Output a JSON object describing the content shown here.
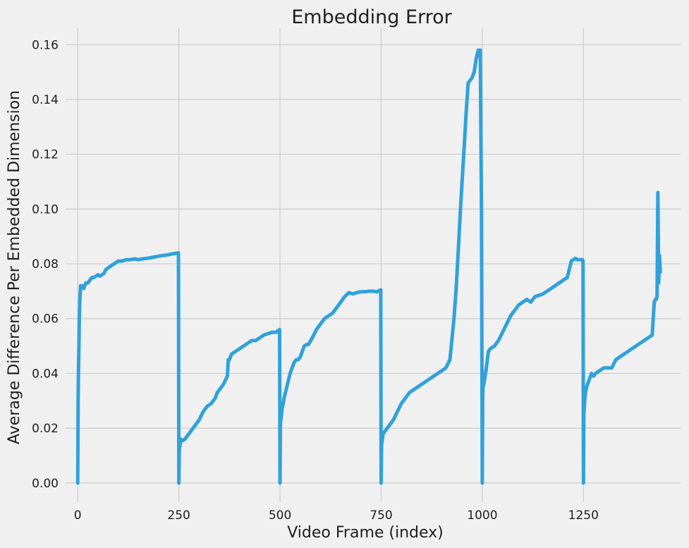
{
  "chart_data": {
    "type": "line",
    "title": "Embedding Error",
    "xlabel": "Video Frame (index)",
    "ylabel": "Average Difference Per Embedded Dimension",
    "xlim": [
      -30,
      1490
    ],
    "ylim": [
      -0.007,
      0.166
    ],
    "xticks": [
      0,
      250,
      500,
      750,
      1000,
      1250
    ],
    "yticks": [
      0.0,
      0.02,
      0.04,
      0.06,
      0.08,
      0.1,
      0.12,
      0.14,
      0.16
    ],
    "ytick_labels": [
      "0.00",
      "0.02",
      "0.04",
      "0.06",
      "0.08",
      "0.10",
      "0.12",
      "0.14",
      "0.16"
    ],
    "xtick_labels": [
      "0",
      "250",
      "500",
      "750",
      "1000",
      "1250"
    ],
    "grid": true,
    "color": "#30a2da",
    "series": [
      {
        "x": [
          0,
          1,
          2,
          3,
          4,
          5,
          7,
          10,
          12,
          15,
          20,
          25,
          30,
          35,
          40,
          45,
          50,
          55,
          60,
          65,
          70,
          80,
          90,
          100,
          110,
          120,
          130,
          140,
          150,
          160,
          170,
          180,
          190,
          200,
          210,
          220,
          230,
          240,
          249,
          250,
          251,
          253,
          255,
          258,
          260,
          265,
          270,
          280,
          290,
          300,
          310,
          320,
          330,
          340,
          345,
          350,
          360,
          370,
          372,
          375,
          380,
          390,
          400,
          410,
          420,
          430,
          440,
          450,
          460,
          470,
          480,
          490,
          499,
          500,
          501,
          503,
          505,
          508,
          510,
          515,
          520,
          525,
          530,
          535,
          540,
          545,
          550,
          555,
          560,
          565,
          570,
          580,
          590,
          600,
          610,
          620,
          630,
          640,
          650,
          660,
          670,
          680,
          690,
          700,
          710,
          720,
          730,
          740,
          749,
          750,
          751,
          753,
          755,
          760,
          765,
          770,
          780,
          790,
          800,
          810,
          820,
          830,
          840,
          850,
          860,
          870,
          880,
          890,
          900,
          910,
          920,
          930,
          935,
          940,
          945,
          950,
          955,
          960,
          965,
          970,
          975,
          980,
          985,
          990,
          995,
          998,
          1000,
          1001,
          1002,
          1005,
          1010,
          1015,
          1020,
          1030,
          1040,
          1050,
          1060,
          1070,
          1080,
          1090,
          1100,
          1110,
          1120,
          1130,
          1140,
          1150,
          1160,
          1170,
          1180,
          1190,
          1200,
          1210,
          1220,
          1230,
          1235,
          1240,
          1248,
          1249,
          1250,
          1251,
          1253,
          1255,
          1258,
          1260,
          1265,
          1270,
          1275,
          1280,
          1290,
          1300,
          1310,
          1320,
          1330,
          1340,
          1350,
          1360,
          1370,
          1380,
          1390,
          1400,
          1410,
          1420,
          1425,
          1428,
          1430,
          1432,
          1434,
          1436,
          1438,
          1440
        ],
        "y": [
          0.0,
          0.03,
          0.042,
          0.05,
          0.06,
          0.066,
          0.072,
          0.071,
          0.072,
          0.071,
          0.073,
          0.073,
          0.074,
          0.075,
          0.075,
          0.0755,
          0.076,
          0.0755,
          0.076,
          0.0765,
          0.078,
          0.079,
          0.08,
          0.081,
          0.081,
          0.0815,
          0.0815,
          0.0818,
          0.0815,
          0.0818,
          0.082,
          0.0822,
          0.0825,
          0.0828,
          0.083,
          0.0832,
          0.0835,
          0.0838,
          0.084,
          0.0,
          0.012,
          0.014,
          0.016,
          0.0155,
          0.0155,
          0.016,
          0.017,
          0.019,
          0.021,
          0.023,
          0.026,
          0.028,
          0.029,
          0.031,
          0.033,
          0.034,
          0.036,
          0.039,
          0.045,
          0.045,
          0.047,
          0.048,
          0.049,
          0.05,
          0.051,
          0.052,
          0.052,
          0.053,
          0.054,
          0.0545,
          0.055,
          0.055,
          0.056,
          0.0,
          0.022,
          0.024,
          0.027,
          0.029,
          0.031,
          0.034,
          0.037,
          0.04,
          0.042,
          0.044,
          0.045,
          0.045,
          0.046,
          0.048,
          0.05,
          0.0505,
          0.0505,
          0.053,
          0.056,
          0.058,
          0.06,
          0.061,
          0.062,
          0.064,
          0.066,
          0.068,
          0.0695,
          0.069,
          0.0695,
          0.0698,
          0.0698,
          0.07,
          0.07,
          0.0698,
          0.0705,
          0.0,
          0.014,
          0.016,
          0.018,
          0.019,
          0.02,
          0.021,
          0.023,
          0.026,
          0.029,
          0.031,
          0.033,
          0.034,
          0.035,
          0.036,
          0.037,
          0.038,
          0.039,
          0.04,
          0.041,
          0.042,
          0.045,
          0.06,
          0.07,
          0.083,
          0.097,
          0.11,
          0.122,
          0.135,
          0.146,
          0.147,
          0.148,
          0.15,
          0.155,
          0.158,
          0.158,
          0.1,
          0.0,
          0.032,
          0.035,
          0.037,
          0.042,
          0.048,
          0.049,
          0.05,
          0.052,
          0.055,
          0.058,
          0.061,
          0.063,
          0.065,
          0.066,
          0.067,
          0.066,
          0.068,
          0.0685,
          0.069,
          0.07,
          0.071,
          0.072,
          0.073,
          0.074,
          0.075,
          0.081,
          0.082,
          0.0815,
          0.0815,
          0.0815,
          0.081,
          0.0,
          0.025,
          0.03,
          0.033,
          0.035,
          0.036,
          0.038,
          0.04,
          0.039,
          0.04,
          0.041,
          0.042,
          0.042,
          0.042,
          0.045,
          0.046,
          0.047,
          0.048,
          0.049,
          0.05,
          0.051,
          0.052,
          0.053,
          0.054,
          0.066,
          0.067,
          0.067,
          0.068,
          0.106,
          0.073,
          0.083,
          0.077
        ]
      }
    ]
  }
}
